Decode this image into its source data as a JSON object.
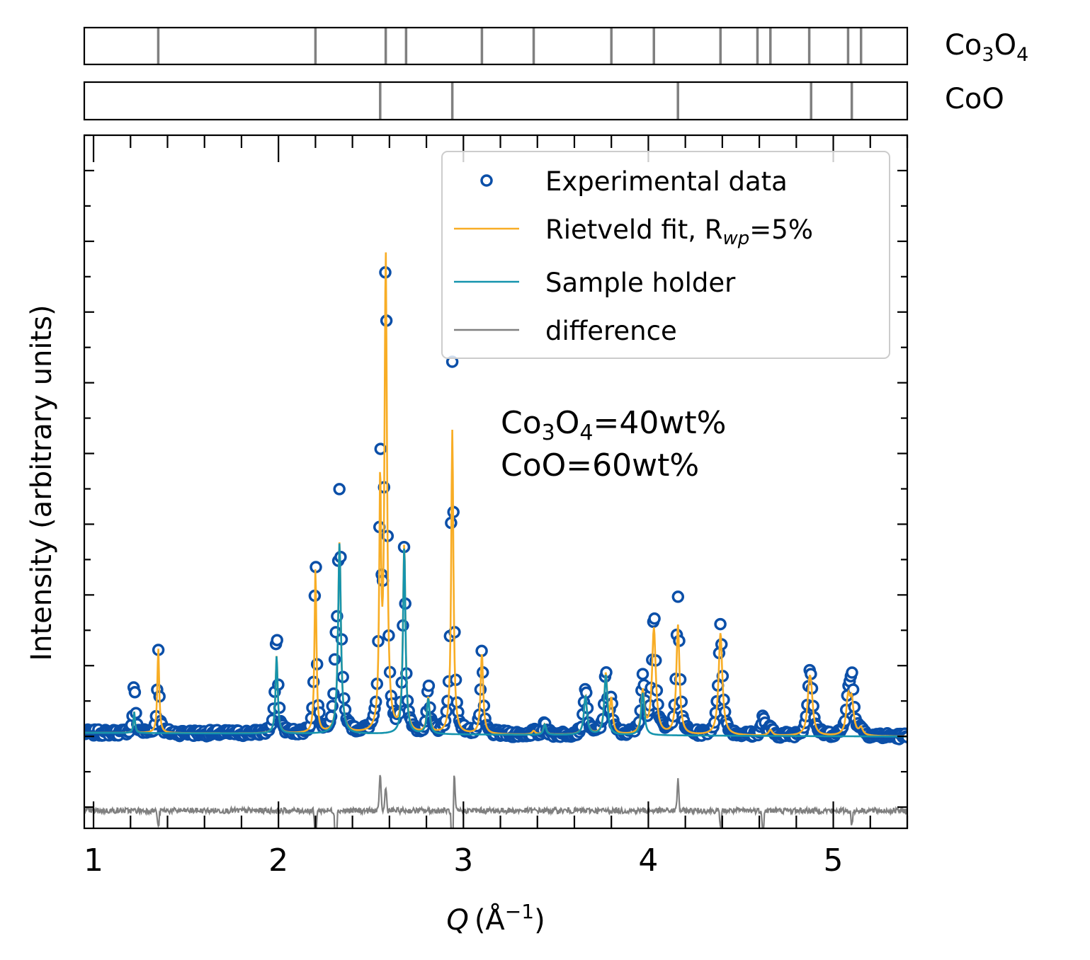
{
  "chart_data": {
    "type": "line",
    "xlabel_var": "Q",
    "xlabel_unit_base": "(Å",
    "xlabel_unit_exp": "−1",
    "xlabel_unit_close": ")",
    "ylabel": "Intensity (arbitrary units)",
    "xlim": [
      0.95,
      5.4
    ],
    "ylim": [
      -1.3,
      8.5
    ],
    "x_ticks": [
      1,
      2,
      3,
      4,
      5
    ],
    "x_tick_labels": [
      "1",
      "2",
      "3",
      "4",
      "5"
    ],
    "y_tick_labels_shown": false,
    "grid": false,
    "legend_position": "top-right",
    "legend": [
      {
        "label_text": "Experimental data",
        "style": "marker-open-circle",
        "color": "#0b4fa8"
      },
      {
        "label_text": "Rietveld fit, R",
        "label_sub": "wp",
        "label_after": "=5%",
        "style": "line",
        "color": "#f8ad25"
      },
      {
        "label_text": "Sample holder",
        "style": "line",
        "color": "#1594ad"
      },
      {
        "label_text": "difference",
        "style": "line",
        "color": "#808080"
      }
    ],
    "annotation": {
      "line1_a": "Co",
      "line1_sub1": "3",
      "line1_b": "O",
      "line1_sub2": "4",
      "line1_c": "=40wt%",
      "line2": "CoO=60wt%",
      "anchor_xy": [
        3.2,
        3.35
      ]
    },
    "phase_panels": [
      {
        "label_a": "Co",
        "label_sub1": "3",
        "label_b": "O",
        "label_sub2": "4",
        "reflections": [
          1.35,
          2.2,
          2.58,
          2.69,
          3.1,
          3.38,
          3.8,
          4.03,
          4.39,
          4.59,
          4.66,
          4.87,
          5.08,
          5.15
        ]
      },
      {
        "label_a": "CoO",
        "label_sub1": "",
        "label_b": "",
        "label_sub2": "",
        "reflections": [
          2.55,
          2.94,
          4.16,
          4.88,
          5.1
        ]
      }
    ],
    "baseline": 0.05,
    "co3o4_peaks": [
      {
        "x": 1.35,
        "h": 1.2,
        "w": 0.006
      },
      {
        "x": 2.2,
        "h": 2.35,
        "w": 0.006
      },
      {
        "x": 2.58,
        "h": 6.7,
        "w": 0.008
      },
      {
        "x": 3.1,
        "h": 1.15,
        "w": 0.008
      },
      {
        "x": 3.38,
        "h": 0.05,
        "w": 0.01
      },
      {
        "x": 3.8,
        "h": 0.45,
        "w": 0.008
      },
      {
        "x": 4.03,
        "h": 1.5,
        "w": 0.012
      },
      {
        "x": 4.39,
        "h": 1.45,
        "w": 0.012
      },
      {
        "x": 4.66,
        "h": 0.08,
        "w": 0.012
      },
      {
        "x": 4.87,
        "h": 0.55,
        "w": 0.012
      },
      {
        "x": 5.08,
        "h": 0.5,
        "w": 0.012
      },
      {
        "x": 5.15,
        "h": 0.1,
        "w": 0.012
      }
    ],
    "coo_peaks": [
      {
        "x": 2.55,
        "h": 3.4,
        "w": 0.006
      },
      {
        "x": 2.94,
        "h": 4.3,
        "w": 0.007
      },
      {
        "x": 4.16,
        "h": 1.55,
        "w": 0.01
      },
      {
        "x": 4.88,
        "h": 0.45,
        "w": 0.012
      },
      {
        "x": 5.1,
        "h": 0.45,
        "w": 0.012
      }
    ],
    "holder_peaks": [
      {
        "x": 1.22,
        "h": 0.3,
        "w": 0.005
      },
      {
        "x": 1.99,
        "h": 1.1,
        "w": 0.007
      },
      {
        "x": 2.33,
        "h": 2.7,
        "w": 0.009
      },
      {
        "x": 2.68,
        "h": 2.65,
        "w": 0.008
      },
      {
        "x": 2.81,
        "h": 0.5,
        "w": 0.009
      },
      {
        "x": 3.44,
        "h": 0.15,
        "w": 0.008
      },
      {
        "x": 3.66,
        "h": 0.55,
        "w": 0.01
      },
      {
        "x": 3.77,
        "h": 0.85,
        "w": 0.01
      },
      {
        "x": 3.97,
        "h": 0.6,
        "w": 0.01
      }
    ],
    "extra_exp_peaks": [
      {
        "x": 1.22,
        "h": 0.45,
        "w": 0.008
      },
      {
        "x": 1.99,
        "h": 0.4,
        "w": 0.012
      },
      {
        "x": 2.2,
        "h": 0.35,
        "w": 0.008
      },
      {
        "x": 2.31,
        "h": 0.8,
        "w": 0.01
      },
      {
        "x": 2.33,
        "h": 0.6,
        "w": 0.012
      },
      {
        "x": 2.55,
        "h": 0.4,
        "w": 0.01
      },
      {
        "x": 2.58,
        "h": 0.2,
        "w": 0.01
      },
      {
        "x": 2.81,
        "h": 0.15,
        "w": 0.01
      },
      {
        "x": 2.94,
        "h": 1.0,
        "w": 0.01
      },
      {
        "x": 3.44,
        "h": 0.05,
        "w": 0.01
      },
      {
        "x": 3.66,
        "h": 0.15,
        "w": 0.012
      },
      {
        "x": 3.97,
        "h": 0.2,
        "w": 0.012
      },
      {
        "x": 4.03,
        "h": 0.2,
        "w": 0.014
      },
      {
        "x": 4.16,
        "h": 0.35,
        "w": 0.012
      },
      {
        "x": 4.39,
        "h": 0.15,
        "w": 0.014
      },
      {
        "x": 4.62,
        "h": 0.25,
        "w": 0.012
      },
      {
        "x": 4.88,
        "h": 0.1,
        "w": 0.014
      },
      {
        "x": 5.1,
        "h": 0.3,
        "w": 0.014
      }
    ],
    "difference_offset": -1.05,
    "difference_spikes": [
      {
        "x": 1.35,
        "a": -0.25
      },
      {
        "x": 2.2,
        "a": -0.45
      },
      {
        "x": 2.31,
        "a": -0.75
      },
      {
        "x": 2.55,
        "a": 0.55
      },
      {
        "x": 2.58,
        "a": 0.35
      },
      {
        "x": 2.94,
        "a": -0.95
      },
      {
        "x": 2.95,
        "a": 0.55
      },
      {
        "x": 4.16,
        "a": 0.45
      },
      {
        "x": 4.39,
        "a": -0.25
      },
      {
        "x": 4.62,
        "a": -0.3
      },
      {
        "x": 5.1,
        "a": -0.2
      }
    ],
    "colors": {
      "experimental": "#0b4fa8",
      "fit": "#f8ad25",
      "holder": "#1594ad",
      "difference": "#808080",
      "reflection_ticks": "#808080"
    }
  }
}
